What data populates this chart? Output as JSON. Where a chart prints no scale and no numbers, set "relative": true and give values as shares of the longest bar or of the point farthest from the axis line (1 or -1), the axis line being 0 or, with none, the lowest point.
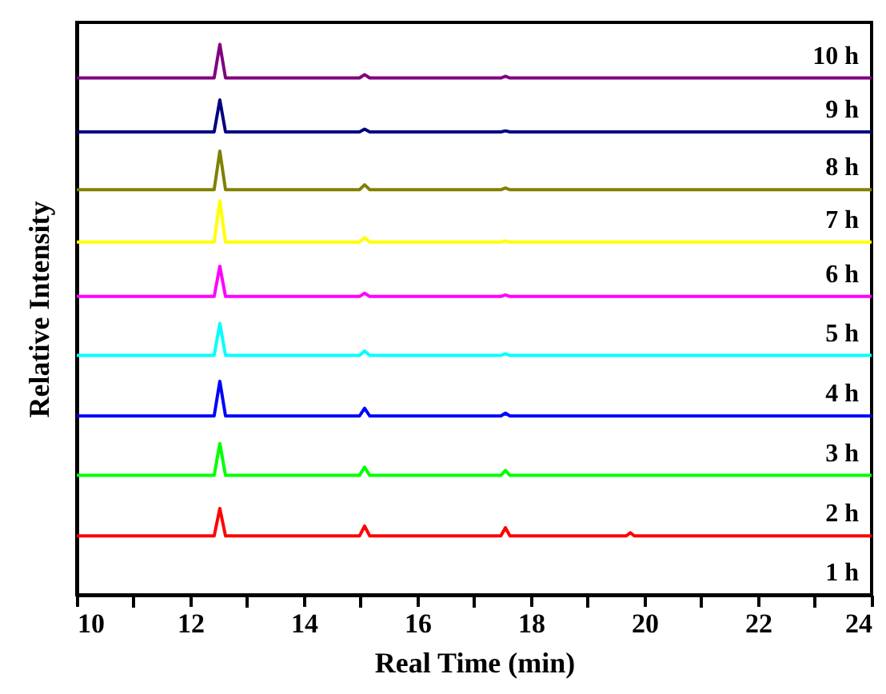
{
  "chart_data": {
    "type": "line",
    "relative": true,
    "xlabel": "Real Time (min)",
    "ylabel": "Relative Intensity",
    "xlim": [
      10,
      24
    ],
    "xticks": [
      10,
      {
        "value": 11,
        "label": null
      },
      12,
      {
        "value": 13,
        "label": null
      },
      14,
      {
        "value": 15,
        "label": null
      },
      16,
      {
        "value": 17,
        "label": null
      },
      18,
      {
        "value": 19,
        "label": null
      },
      20,
      {
        "value": 21,
        "label": null
      },
      22,
      {
        "value": 23,
        "label": null
      },
      24
    ],
    "x": [
      10,
      12.42,
      12.52,
      12.62,
      14.98,
      15.07,
      15.16,
      17.47,
      17.55,
      17.63,
      19.68,
      19.75,
      19.82,
      24
    ],
    "series": [
      {
        "name": "2 h",
        "color": "#ff0000",
        "values": [
          0.107,
          0.107,
          0.157,
          0.107,
          0.107,
          0.125,
          0.107,
          0.107,
          0.122,
          0.107,
          0.107,
          0.113,
          0.107,
          0.107
        ]
      },
      {
        "name": "3 h",
        "color": "#00ff00",
        "values": [
          0.217,
          0.217,
          0.275,
          0.217,
          0.217,
          0.232,
          0.217,
          0.217,
          0.226,
          0.217,
          0.217,
          0.217,
          0.217,
          0.217
        ]
      },
      {
        "name": "4 h",
        "color": "#0000ff",
        "values": [
          0.325,
          0.325,
          0.388,
          0.325,
          0.325,
          0.339,
          0.325,
          0.325,
          0.33,
          0.325,
          0.325,
          0.325,
          0.325,
          0.325
        ]
      },
      {
        "name": "5 h",
        "color": "#00ffff",
        "values": [
          0.435,
          0.435,
          0.493,
          0.435,
          0.435,
          0.443,
          0.435,
          0.435,
          0.438,
          0.435,
          0.435,
          0.435,
          0.435,
          0.435
        ]
      },
      {
        "name": "6 h",
        "color": "#ff00ff",
        "values": [
          0.542,
          0.542,
          0.597,
          0.542,
          0.542,
          0.548,
          0.542,
          0.542,
          0.545,
          0.542,
          0.542,
          0.542,
          0.542,
          0.542
        ]
      },
      {
        "name": "7 h",
        "color": "#ffff00",
        "values": [
          0.641,
          0.641,
          0.716,
          0.641,
          0.641,
          0.649,
          0.641,
          0.641,
          0.643,
          0.641,
          0.641,
          0.641,
          0.641,
          0.641
        ]
      },
      {
        "name": "8 h",
        "color": "#808000",
        "values": [
          0.736,
          0.736,
          0.806,
          0.736,
          0.736,
          0.745,
          0.736,
          0.736,
          0.739,
          0.736,
          0.736,
          0.736,
          0.736,
          0.736
        ]
      },
      {
        "name": "9 h",
        "color": "#000080",
        "values": [
          0.841,
          0.841,
          0.899,
          0.841,
          0.841,
          0.846,
          0.841,
          0.841,
          0.843,
          0.841,
          0.841,
          0.841,
          0.841,
          0.841
        ]
      },
      {
        "name": "10 h",
        "color": "#800080",
        "values": [
          0.939,
          0.939,
          1,
          0.939,
          0.939,
          0.945,
          0.939,
          0.939,
          0.942,
          0.939,
          0.939,
          0.939,
          0.939,
          0.939
        ]
      }
    ],
    "annotations": [
      "1 h"
    ]
  }
}
